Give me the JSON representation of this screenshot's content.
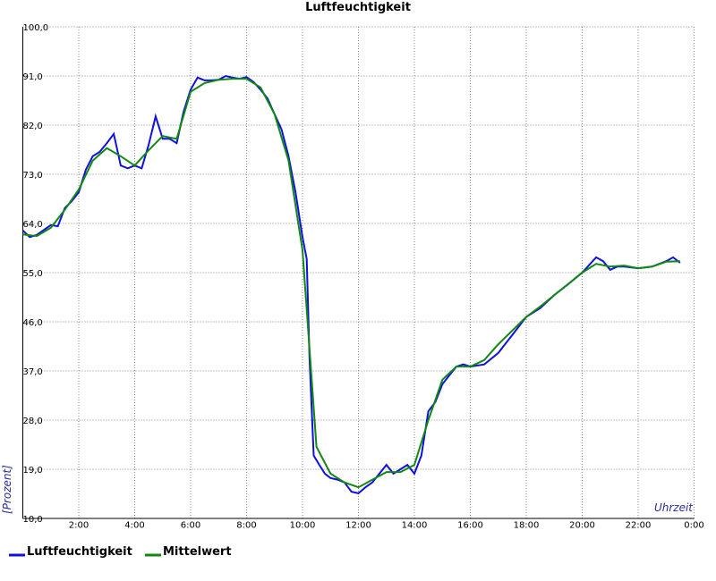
{
  "chart_data": {
    "type": "line",
    "title": "Luftfeuchtigkeit",
    "y_label": "[Prozent]",
    "x_label": "Uhrzeit",
    "xlim": [
      0,
      24
    ],
    "ylim": [
      10,
      100
    ],
    "xticks": [
      {
        "value": 2,
        "label": "2:00"
      },
      {
        "value": 4,
        "label": "4:00"
      },
      {
        "value": 6,
        "label": "6:00"
      },
      {
        "value": 8,
        "label": "8:00"
      },
      {
        "value": 10,
        "label": "10:00"
      },
      {
        "value": 12,
        "label": "12:00"
      },
      {
        "value": 14,
        "label": "14:00"
      },
      {
        "value": 16,
        "label": "16:00"
      },
      {
        "value": 18,
        "label": "18:00"
      },
      {
        "value": 20,
        "label": "20:00"
      },
      {
        "value": 22,
        "label": "22:00"
      },
      {
        "value": 24,
        "label": "0:00"
      }
    ],
    "yticks": [
      {
        "value": 10,
        "label": "10,0"
      },
      {
        "value": 19,
        "label": "19,0"
      },
      {
        "value": 28,
        "label": "28,0"
      },
      {
        "value": 37,
        "label": "37,0"
      },
      {
        "value": 46,
        "label": "46,0"
      },
      {
        "value": 55,
        "label": "55,0"
      },
      {
        "value": 64,
        "label": "64,0"
      },
      {
        "value": 73,
        "label": "73,0"
      },
      {
        "value": 82,
        "label": "82,0"
      },
      {
        "value": 91,
        "label": "91,0"
      },
      {
        "value": 100,
        "label": "100,0"
      }
    ],
    "grid": true,
    "series": [
      {
        "name": "Luftfeuchtigkeit",
        "color": "#1010e0",
        "x": [
          0,
          0.25,
          0.5,
          1,
          1.25,
          1.5,
          1.75,
          2,
          2.25,
          2.5,
          2.75,
          3,
          3.25,
          3.5,
          3.75,
          4,
          4.25,
          4.5,
          4.75,
          5,
          5.25,
          5.5,
          5.75,
          6,
          6.25,
          6.5,
          6.75,
          7,
          7.25,
          7.5,
          7.75,
          8,
          8.25,
          8.5,
          8.75,
          9,
          9.25,
          9.5,
          9.75,
          10,
          10.15,
          10.25,
          10.4,
          10.6,
          10.8,
          11,
          11.25,
          11.5,
          11.75,
          12,
          12.25,
          12.5,
          12.75,
          13,
          13.25,
          13.5,
          13.75,
          14,
          14.25,
          14.5,
          14.75,
          15,
          15.25,
          15.5,
          15.75,
          16,
          16.5,
          17,
          17.5,
          18,
          18.5,
          19,
          19.5,
          20,
          20.5,
          20.75,
          21,
          21.25,
          21.5,
          22,
          22.5,
          23,
          23.25,
          23.5
        ],
        "values": [
          62.7,
          61.5,
          61.9,
          63.7,
          63.5,
          66.8,
          68.1,
          69.7,
          73.8,
          76.3,
          77.1,
          78.7,
          80.4,
          74.6,
          74.1,
          74.6,
          74.1,
          78.4,
          83.6,
          79.5,
          79.5,
          78.7,
          84.5,
          88.5,
          90.7,
          90.2,
          90.2,
          90.3,
          91.0,
          90.7,
          90.5,
          90.8,
          89.9,
          88.5,
          86.9,
          84.0,
          81.2,
          76.3,
          69.7,
          61.5,
          57.5,
          39.5,
          21.5,
          19.8,
          18.2,
          17.4,
          17.1,
          16.6,
          14.9,
          14.6,
          15.7,
          16.6,
          18.2,
          19.8,
          18.2,
          19.0,
          19.8,
          18.2,
          21.5,
          29.6,
          31.3,
          34.6,
          36.2,
          37.8,
          38.2,
          37.8,
          38.2,
          40.3,
          43.6,
          46.9,
          48.5,
          50.9,
          52.9,
          55.0,
          57.8,
          57.1,
          55.5,
          56.1,
          56.1,
          55.8,
          56.1,
          57.1,
          57.8,
          56.8
        ]
      },
      {
        "name": "Mittelwert",
        "color": "#118811",
        "x": [
          0,
          0.5,
          1,
          1.5,
          2,
          2.5,
          3,
          3.5,
          4,
          4.5,
          5,
          5.5,
          6,
          6.5,
          7,
          7.5,
          8,
          8.5,
          9,
          9.5,
          10,
          10.25,
          10.5,
          11,
          11.5,
          12,
          12.5,
          13,
          13.5,
          14,
          14.5,
          15,
          15.5,
          16,
          16.5,
          17,
          17.5,
          18,
          18.5,
          19,
          19.5,
          20,
          20.5,
          21,
          21.5,
          22,
          22.5,
          23,
          23.5
        ],
        "values": [
          62.0,
          61.7,
          63.2,
          66.5,
          70.2,
          75.5,
          77.8,
          76.3,
          74.6,
          77.4,
          80.0,
          79.5,
          88.1,
          89.7,
          90.3,
          90.5,
          90.5,
          88.9,
          84.0,
          75.5,
          59.1,
          41.1,
          23.1,
          18.2,
          16.6,
          15.7,
          17.1,
          18.5,
          18.5,
          19.8,
          28.0,
          35.4,
          37.8,
          37.8,
          39.0,
          41.9,
          44.4,
          46.9,
          48.8,
          50.9,
          52.9,
          55.0,
          56.6,
          56.1,
          56.3,
          55.8,
          56.1,
          57.0,
          57.1
        ]
      }
    ]
  }
}
